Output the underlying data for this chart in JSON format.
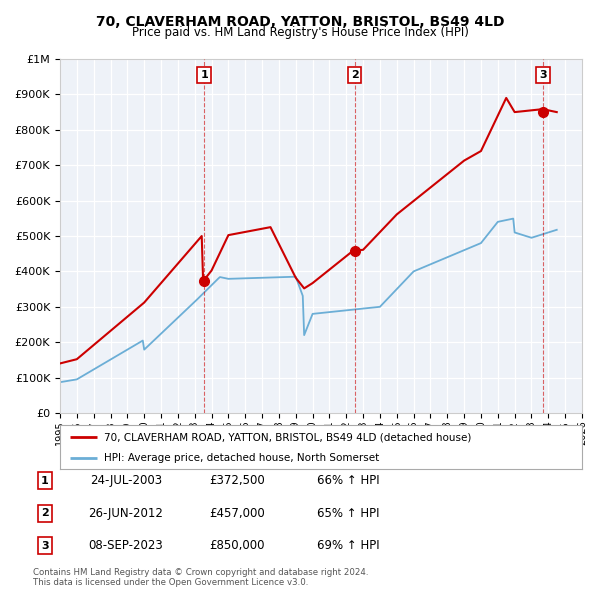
{
  "title": "70, CLAVERHAM ROAD, YATTON, BRISTOL, BS49 4LD",
  "subtitle": "Price paid vs. HM Land Registry's House Price Index (HPI)",
  "xlim": [
    1995,
    2026
  ],
  "ylim": [
    0,
    1000000
  ],
  "yticks": [
    0,
    100000,
    200000,
    300000,
    400000,
    500000,
    600000,
    700000,
    800000,
    900000,
    1000000
  ],
  "xticks": [
    1995,
    1996,
    1997,
    1998,
    1999,
    2000,
    2001,
    2002,
    2003,
    2004,
    2005,
    2006,
    2007,
    2008,
    2009,
    2010,
    2011,
    2012,
    2013,
    2014,
    2015,
    2016,
    2017,
    2018,
    2019,
    2020,
    2021,
    2022,
    2023,
    2024,
    2025,
    2026
  ],
  "hpi_color": "#6baed6",
  "price_color": "#cc0000",
  "background_color": "#eef2f8",
  "grid_color": "#ffffff",
  "transactions": [
    {
      "num": 1,
      "date": "24-JUL-2003",
      "price": 372500,
      "pct": "66%",
      "x": 2003.56
    },
    {
      "num": 2,
      "date": "26-JUN-2012",
      "price": 457000,
      "pct": "65%",
      "x": 2012.49
    },
    {
      "num": 3,
      "date": "08-SEP-2023",
      "price": 850000,
      "pct": "69%",
      "x": 2023.69
    }
  ],
  "legend_line1": "70, CLAVERHAM ROAD, YATTON, BRISTOL, BS49 4LD (detached house)",
  "legend_line2": "HPI: Average price, detached house, North Somerset",
  "footer1": "Contains HM Land Registry data © Crown copyright and database right 2024.",
  "footer2": "This data is licensed under the Open Government Licence v3.0."
}
